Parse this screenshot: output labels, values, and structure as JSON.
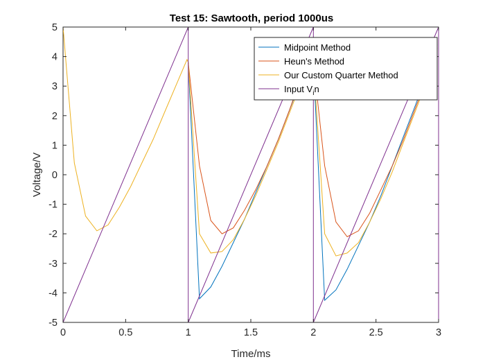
{
  "chart_data": {
    "type": "line",
    "title": "Test 15: Sawtooth, period 1000us",
    "xlabel": "Time/ms",
    "ylabel": "Voltage/V",
    "xlim": [
      0,
      3
    ],
    "ylim": [
      -5,
      5
    ],
    "xticks": [
      0,
      0.5,
      1,
      1.5,
      2,
      2.5,
      3
    ],
    "xtick_labels": [
      "0",
      "0.5",
      "1",
      "1.5",
      "2",
      "2.5",
      "3"
    ],
    "yticks": [
      -5,
      -4,
      -3,
      -2,
      -1,
      0,
      1,
      2,
      3,
      4,
      5
    ],
    "ytick_labels": [
      "-5",
      "-4",
      "-3",
      "-2",
      "-1",
      "0",
      "1",
      "2",
      "3",
      "4",
      "5"
    ],
    "grid": false,
    "legend_position": "top-right",
    "series": [
      {
        "name": "Midpoint Method",
        "color": "#0072BD",
        "x": [
          1.0,
          1.09,
          1.18,
          1.27,
          1.36,
          1.45,
          1.54,
          1.63,
          1.72,
          1.81,
          1.9,
          1.99,
          2.0,
          2.09,
          2.18,
          2.27,
          2.36,
          2.45,
          2.54,
          2.63,
          2.72,
          2.81,
          2.9,
          2.99
        ],
        "y": [
          3.8,
          -4.2,
          -3.8,
          -3.1,
          -2.3,
          -1.5,
          -0.6,
          0.3,
          1.2,
          2.2,
          3.2,
          4.3,
          3.8,
          -4.25,
          -3.9,
          -3.2,
          -2.4,
          -1.6,
          -0.7,
          0.3,
          1.3,
          2.3,
          3.3,
          4.4
        ]
      },
      {
        "name": "Heun's Method",
        "color": "#D95319",
        "x": [
          1.0,
          1.09,
          1.18,
          1.27,
          1.36,
          1.45,
          1.54,
          1.63,
          1.72,
          1.81,
          1.9,
          1.99,
          2.0,
          2.09,
          2.18,
          2.27,
          2.36,
          2.45,
          2.54,
          2.63,
          2.72,
          2.81,
          2.9,
          2.99
        ],
        "y": [
          3.8,
          0.3,
          -1.55,
          -2.0,
          -1.8,
          -1.2,
          -0.5,
          0.3,
          1.2,
          2.2,
          3.3,
          4.3,
          3.8,
          0.3,
          -1.6,
          -2.1,
          -1.9,
          -1.3,
          -0.5,
          0.3,
          1.2,
          2.2,
          3.2,
          4.3
        ]
      },
      {
        "name": "Our Custom Quarter Method",
        "color": "#EDB120",
        "x": [
          0.0,
          0.09,
          0.18,
          0.27,
          0.36,
          0.45,
          0.54,
          0.63,
          0.72,
          0.81,
          0.9,
          0.99,
          1.0,
          1.09,
          1.18,
          1.27,
          1.36,
          1.45,
          1.54,
          1.63,
          1.72,
          1.81,
          1.9,
          1.99,
          2.0,
          2.09,
          2.18,
          2.27,
          2.36,
          2.45,
          2.54,
          2.63,
          2.72,
          2.81,
          2.9,
          2.99
        ],
        "y": [
          5.0,
          0.4,
          -1.4,
          -1.9,
          -1.7,
          -1.1,
          -0.4,
          0.4,
          1.2,
          2.1,
          3.0,
          3.9,
          3.8,
          -2.0,
          -2.65,
          -2.6,
          -2.2,
          -1.5,
          -0.7,
          0.2,
          1.1,
          2.1,
          3.1,
          4.2,
          3.8,
          -2.0,
          -2.75,
          -2.65,
          -2.3,
          -1.6,
          -0.8,
          0.1,
          1.1,
          2.1,
          3.1,
          4.2
        ]
      },
      {
        "name": "Input V_in",
        "color": "#7E2F8E",
        "x": [
          0.0,
          1.0,
          1.0,
          2.0,
          2.0,
          3.0,
          3.0
        ],
        "y": [
          -5.0,
          5.0,
          -5.0,
          5.0,
          -5.0,
          5.0,
          -5.0
        ]
      }
    ],
    "legend": [
      "Midpoint Method",
      "Heun's Method",
      "Our Custom Quarter Method",
      "Input V_in"
    ]
  }
}
